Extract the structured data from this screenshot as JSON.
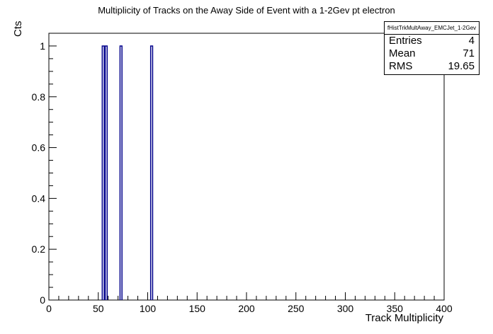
{
  "title": "Multiplicity of Tracks on the Away Side of Event with a 1-2Gev pt electron",
  "stats_box": {
    "name": "fHistTrkMultAway_EMCJet_1-2Gev",
    "rows": [
      {
        "label": "Entries",
        "value": "4"
      },
      {
        "label": "Mean",
        "value": "71"
      },
      {
        "label": "RMS",
        "value": "19.65"
      }
    ]
  },
  "colors": {
    "histogram": "#00008b",
    "axis": "#000000"
  },
  "chart_data": {
    "type": "bar",
    "title": "Multiplicity of Tracks on the Away Side of Event with a 1-2Gev pt electron",
    "xlabel": "Track Multiplicity",
    "ylabel": "Cts",
    "xlim": [
      0,
      400
    ],
    "ylim": [
      0,
      1.05
    ],
    "bin_width": 2,
    "bins": [
      {
        "low": 54,
        "high": 56,
        "value": 1
      },
      {
        "low": 57,
        "high": 59,
        "value": 1
      },
      {
        "low": 72,
        "high": 74,
        "value": 1
      },
      {
        "low": 103,
        "high": 105,
        "value": 1
      }
    ],
    "x_ticks": [
      "0",
      "50",
      "100",
      "150",
      "200",
      "250",
      "300",
      "350",
      "400"
    ],
    "y_ticks": [
      "0",
      "0.2",
      "0.4",
      "0.6",
      "0.8",
      "1"
    ],
    "grid": false,
    "legend": "top-right"
  }
}
